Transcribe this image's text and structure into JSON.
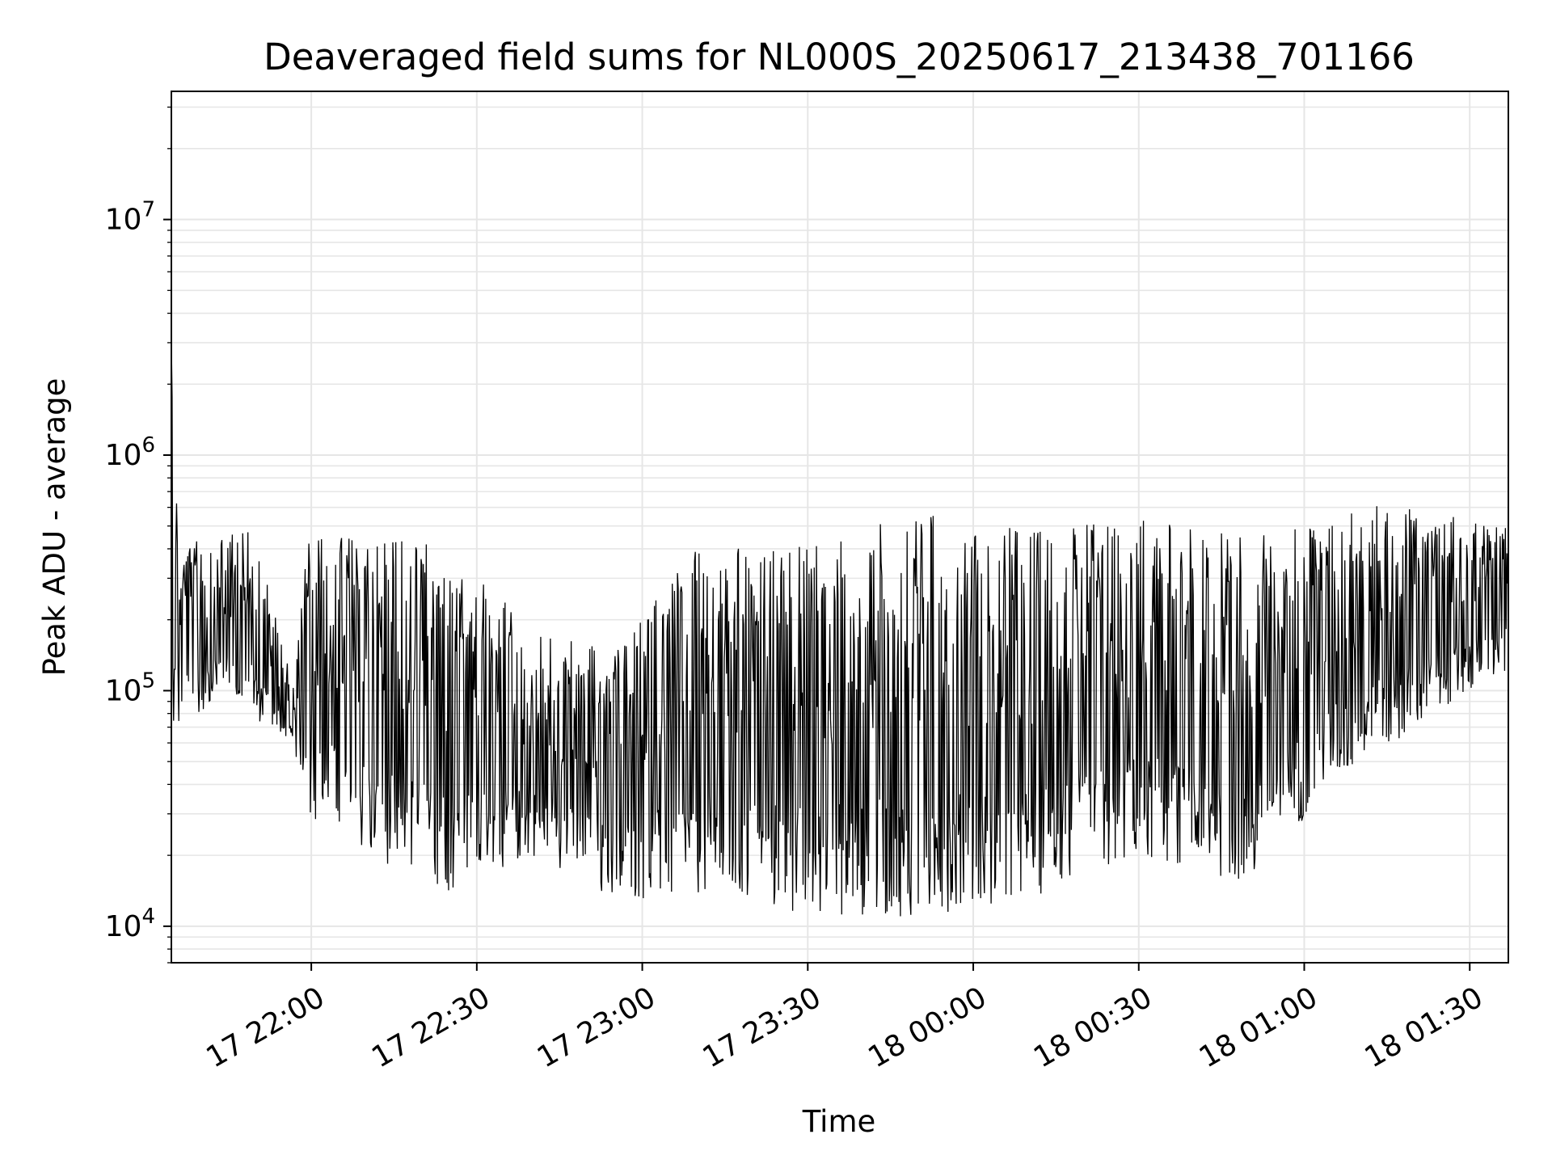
{
  "chart_data": {
    "type": "line",
    "title": "Deaveraged field sums for NL000S_20250617_213438_701166",
    "xlabel": "Time",
    "ylabel": "Peak ADU - average",
    "yscale": "log",
    "ylim": [
      7000,
      35000000
    ],
    "xlim": [
      "2025-06-17 21:34:38",
      "2025-06-18 01:37:00"
    ],
    "grid": true,
    "line_color": "#000000",
    "grid_color": "#e6e6e6",
    "x_ticks": [
      "2025-06-17 22:00:00",
      "2025-06-17 22:30:00",
      "2025-06-17 23:00:00",
      "2025-06-17 23:30:00",
      "2025-06-18 00:00:00",
      "2025-06-18 00:30:00",
      "2025-06-18 01:00:00",
      "2025-06-18 01:30:00"
    ],
    "x_tick_labels": [
      "17 22:00",
      "17 22:30",
      "17 23:00",
      "17 23:30",
      "18 00:00",
      "18 00:30",
      "18 01:00",
      "18 01:30"
    ],
    "y_ticks": [
      10000,
      100000,
      1000000,
      10000000
    ],
    "y_tick_labels": [
      {
        "base": "10",
        "exp": "4"
      },
      {
        "base": "10",
        "exp": "5"
      },
      {
        "base": "10",
        "exp": "6"
      },
      {
        "base": "10",
        "exp": "7"
      }
    ],
    "series": [
      {
        "x_start": "2025-06-17 21:34:38",
        "x_end": "2025-06-18 01:37:00",
        "envelope": [
          {
            "t": "2025-06-17 21:34:38",
            "low": 60000,
            "high": 3000000
          },
          {
            "t": "2025-06-17 21:36:00",
            "low": 70000,
            "high": 450000
          },
          {
            "t": "2025-06-17 21:44:00",
            "low": 95000,
            "high": 500000
          },
          {
            "t": "2025-06-17 21:48:00",
            "low": 80000,
            "high": 520000
          },
          {
            "t": "2025-06-17 21:52:00",
            "low": 70000,
            "high": 300000
          },
          {
            "t": "2025-06-17 21:57:00",
            "low": 55000,
            "high": 100000
          },
          {
            "t": "2025-06-17 21:59:00",
            "low": 30000,
            "high": 470000
          },
          {
            "t": "2025-06-17 22:10:00",
            "low": 20000,
            "high": 450000
          },
          {
            "t": "2025-06-17 22:25:00",
            "low": 14000,
            "high": 420000
          },
          {
            "t": "2025-06-17 22:40:00",
            "low": 20000,
            "high": 180000
          },
          {
            "t": "2025-06-17 22:55:00",
            "low": 13000,
            "high": 150000
          },
          {
            "t": "2025-06-17 23:10:00",
            "low": 13000,
            "high": 400000
          },
          {
            "t": "2025-06-17 23:30:00",
            "low": 11000,
            "high": 420000
          },
          {
            "t": "2025-06-17 23:50:00",
            "low": 11000,
            "high": 580000
          },
          {
            "t": "2025-06-18 00:10:00",
            "low": 13000,
            "high": 480000
          },
          {
            "t": "2025-06-18 00:30:00",
            "low": 20000,
            "high": 550000
          },
          {
            "t": "2025-06-18 00:50:00",
            "low": 15000,
            "high": 450000
          },
          {
            "t": "2025-06-18 01:05:00",
            "low": 40000,
            "high": 550000
          },
          {
            "t": "2025-06-18 01:15:00",
            "low": 55000,
            "high": 650000
          },
          {
            "t": "2025-06-18 01:25:00",
            "low": 85000,
            "high": 560000
          },
          {
            "t": "2025-06-18 01:37:00",
            "low": 120000,
            "high": 500000
          }
        ]
      }
    ]
  }
}
